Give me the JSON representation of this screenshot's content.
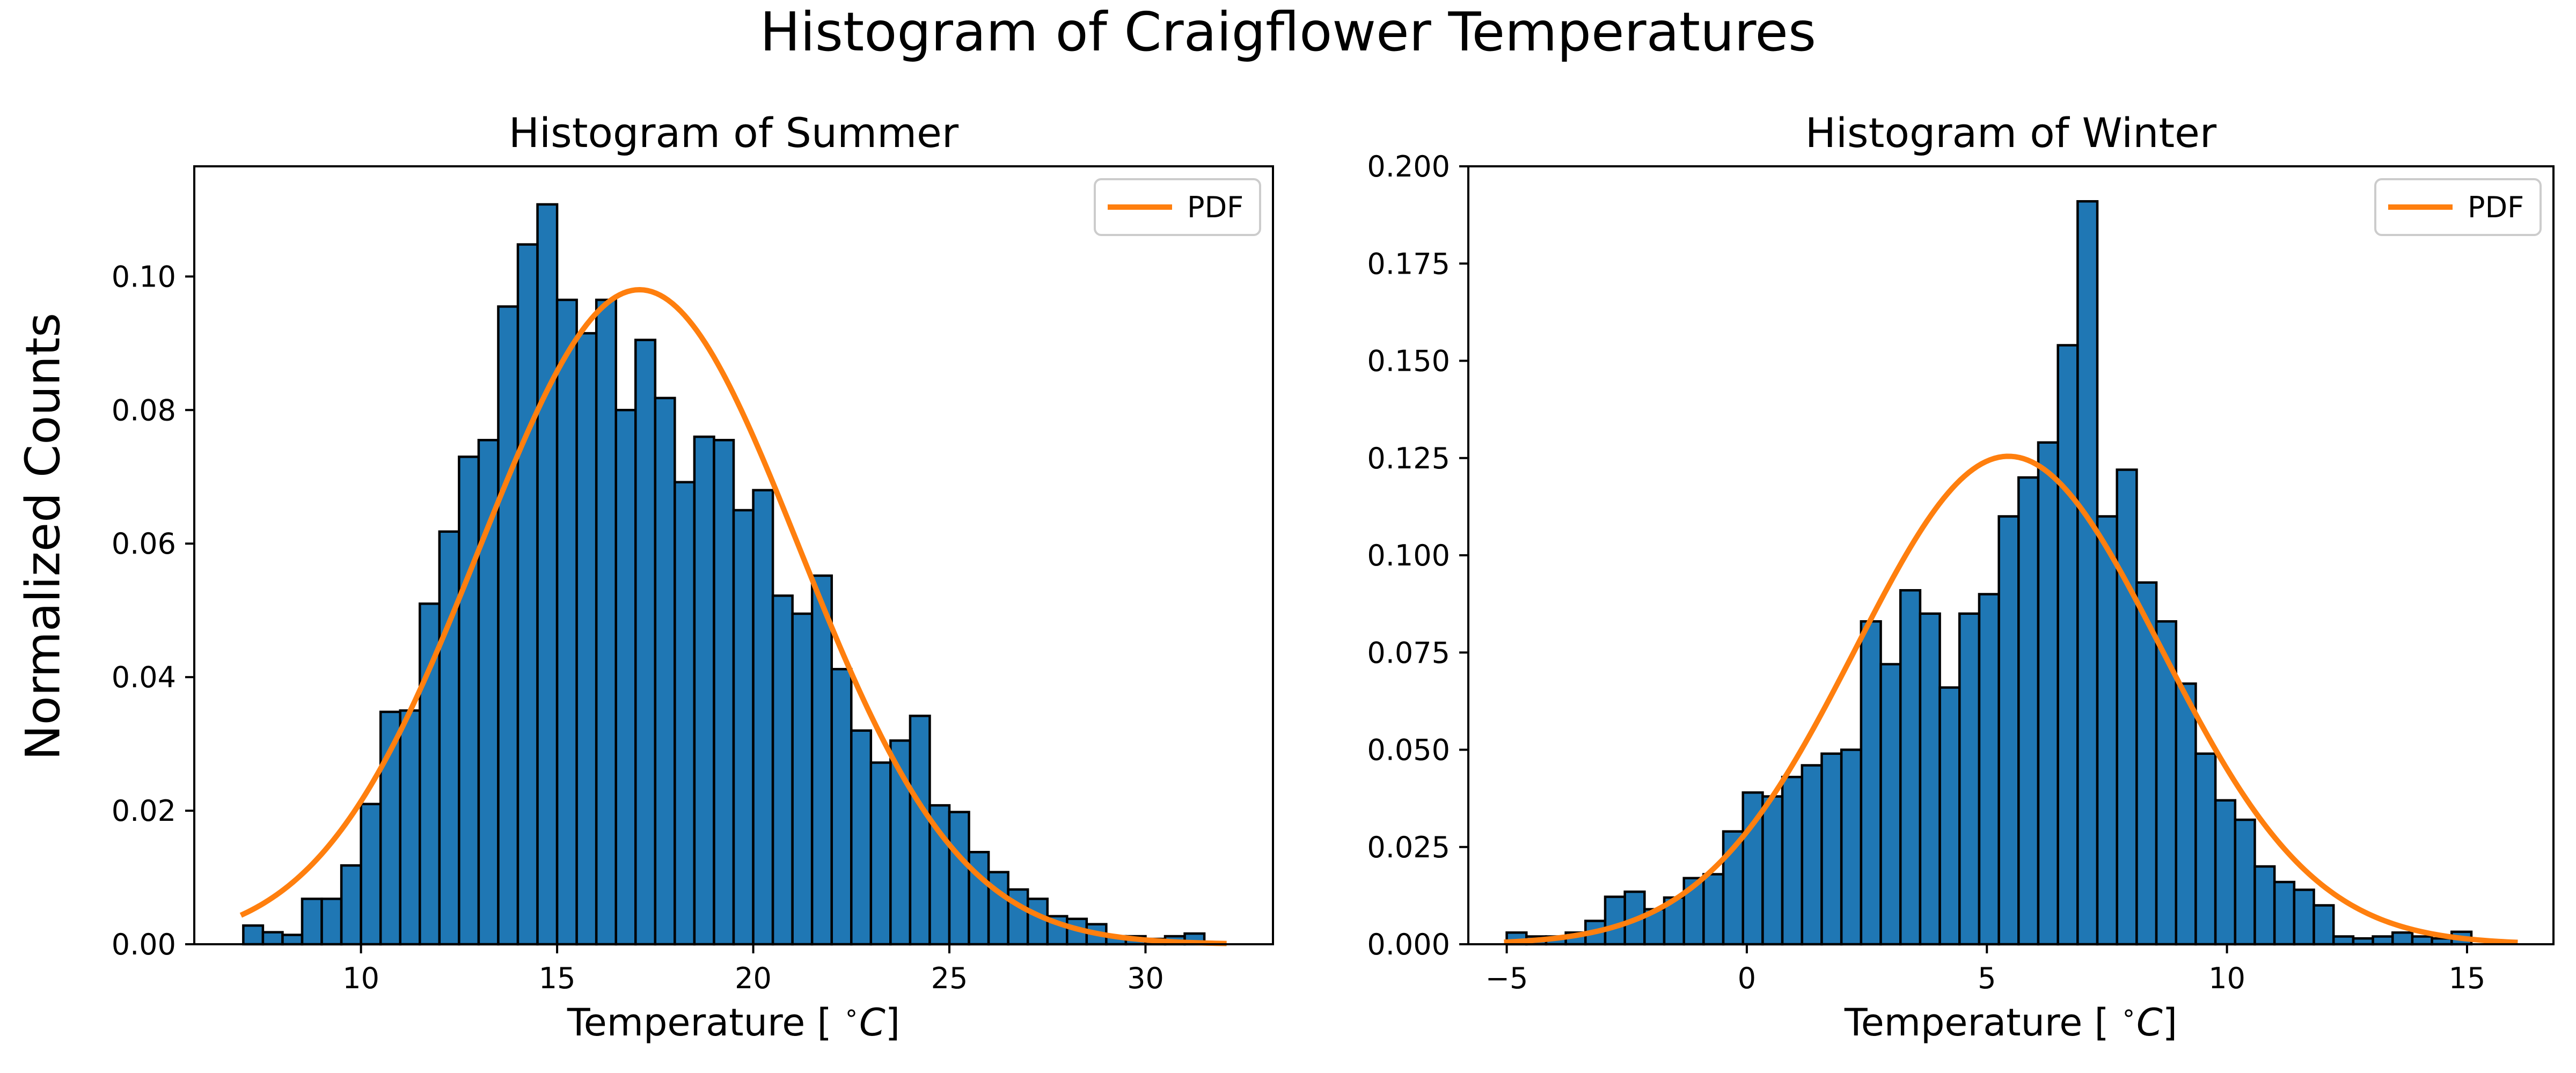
{
  "figure": {
    "title": "Histogram of Craigflower Temperatures",
    "ylabel": "Normalized Counts"
  },
  "chart_data": [
    {
      "type": "bar",
      "title": "Histogram of Summer",
      "xlabel": "Temperature [$^\\circ C$]",
      "ylabel": "Normalized Counts",
      "xlim": [
        5.75,
        33.25
      ],
      "ylim": [
        0,
        0.1165
      ],
      "xticks": [
        "10",
        "15",
        "20",
        "25",
        "30"
      ],
      "xtick_values": [
        10,
        15,
        20,
        25,
        30
      ],
      "yticks": [
        "0.00",
        "0.02",
        "0.04",
        "0.06",
        "0.08",
        "0.10"
      ],
      "ytick_values": [
        0,
        0.02,
        0.04,
        0.06,
        0.08,
        0.1
      ],
      "bin_start": 7.0,
      "bin_width": 0.5,
      "series": [
        {
          "type": "histogram",
          "values": [
            0.0028,
            0.0018,
            0.0014,
            0.0068,
            0.0068,
            0.0118,
            0.021,
            0.0348,
            0.035,
            0.051,
            0.0618,
            0.073,
            0.0755,
            0.0955,
            0.1048,
            0.1108,
            0.0965,
            0.0915,
            0.0965,
            0.08,
            0.0905,
            0.0818,
            0.0692,
            0.076,
            0.0755,
            0.065,
            0.068,
            0.0522,
            0.0495,
            0.0552,
            0.0412,
            0.032,
            0.0272,
            0.0305,
            0.0342,
            0.0208,
            0.0198,
            0.0138,
            0.0108,
            0.0082,
            0.0068,
            0.0042,
            0.0038,
            0.003,
            0.0012,
            0.0012,
            0.0008,
            0.0012,
            0.0016,
            0.0
          ],
          "color": "#1f77b4",
          "edge_color": "#000000"
        },
        {
          "type": "line",
          "name": "PDF",
          "mean": 17.1,
          "std": 4.07,
          "x_range": [
            7.0,
            32.0
          ],
          "color": "#ff7f0e"
        }
      ],
      "legend": {
        "position": "top-right",
        "entries": [
          "PDF"
        ]
      }
    },
    {
      "type": "bar",
      "title": "Histogram of Winter",
      "xlabel": "Temperature [$^\\circ C$]",
      "ylabel": "",
      "xlim": [
        -5.8,
        16.8
      ],
      "ylim": [
        0,
        0.2
      ],
      "xticks": [
        "−5",
        "0",
        "5",
        "10",
        "15"
      ],
      "xtick_values": [
        -5,
        0,
        5,
        10,
        15
      ],
      "yticks": [
        "0.000",
        "0.025",
        "0.050",
        "0.075",
        "0.100",
        "0.125",
        "0.150",
        "0.175",
        "0.200"
      ],
      "ytick_values": [
        0,
        0.025,
        0.05,
        0.075,
        0.1,
        0.125,
        0.15,
        0.175,
        0.2
      ],
      "bin_start": -5.0,
      "bin_width": 0.41,
      "series": [
        {
          "type": "histogram",
          "values": [
            0.003,
            0.002,
            0.002,
            0.003,
            0.006,
            0.0122,
            0.0135,
            0.009,
            0.012,
            0.017,
            0.018,
            0.029,
            0.039,
            0.038,
            0.043,
            0.046,
            0.049,
            0.05,
            0.083,
            0.072,
            0.091,
            0.085,
            0.066,
            0.085,
            0.09,
            0.11,
            0.12,
            0.129,
            0.154,
            0.191,
            0.11,
            0.122,
            0.093,
            0.083,
            0.067,
            0.049,
            0.037,
            0.032,
            0.02,
            0.016,
            0.014,
            0.01,
            0.002,
            0.0015,
            0.002,
            0.003,
            0.002,
            0.0015,
            0.0032,
            0.0
          ],
          "color": "#1f77b4",
          "edge_color": "#000000"
        },
        {
          "type": "line",
          "name": "PDF",
          "mean": 5.45,
          "std": 3.18,
          "x_range": [
            -5.0,
            16.0
          ],
          "color": "#ff7f0e"
        }
      ],
      "legend": {
        "position": "top-right",
        "entries": [
          "PDF"
        ]
      }
    }
  ]
}
